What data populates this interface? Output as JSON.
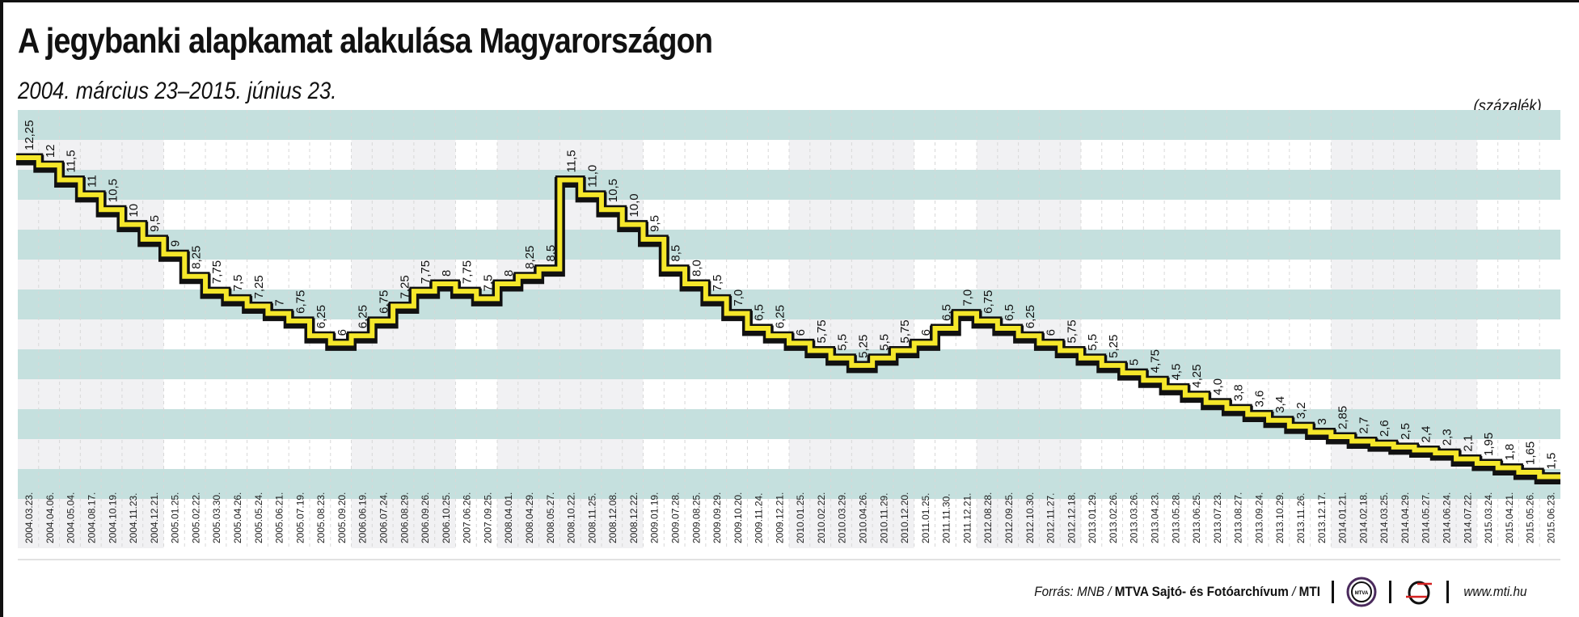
{
  "header": {
    "title": "A jegybanki alapkamat alakulása Magyarországon",
    "subtitle": "2004. március 23–2015. június 23.",
    "unit": "(százalék)"
  },
  "footer": {
    "source_prefix": "Forrás: MNB / ",
    "source_bold": "MTVA Sajtó- és Fotóarchívum",
    "source_sep": " / ",
    "source_mti": "MTI",
    "logo1": "mtva-logo-icon",
    "logo2": "mti-logo-icon",
    "url": "www.mti.hu"
  },
  "colors": {
    "band_teal": "#c5e0de",
    "band_gray": "#f1f1f3",
    "line_fill": "#f5e72a",
    "line_outline": "#111111",
    "grid": "#d8d8d8"
  },
  "chart_data": {
    "type": "line",
    "step": true,
    "title": "A jegybanki alapkamat alakulása Magyarországon",
    "subtitle": "2004. március 23–2015. június 23.",
    "xlabel": "",
    "ylabel": "(százalék)",
    "grid": true,
    "categories": [
      "2004.03.23.",
      "2004.04.06.",
      "2004.05.04.",
      "2004.08.17.",
      "2004.10.19.",
      "2004.11.23.",
      "2004.12.21.",
      "2005.01.25.",
      "2005.02.22.",
      "2005.03.30.",
      "2005.04.26.",
      "2005.05.24.",
      "2005.06.21.",
      "2005.07.19.",
      "2005.08.23.",
      "2005.09.20.",
      "2006.06.19.",
      "2006.07.24.",
      "2006.08.29.",
      "2006.09.26.",
      "2006.10.25.",
      "2007.06.26.",
      "2007.09.25.",
      "2008.04.01.",
      "2008.04.29.",
      "2008.05.27.",
      "2008.10.22.",
      "2008.11.25.",
      "2008.12.08.",
      "2008.12.22.",
      "2009.01.19.",
      "2009.07.28.",
      "2009.08.25.",
      "2009.09.29.",
      "2009.10.20.",
      "2009.11.24.",
      "2009.12.21.",
      "2010.01.25.",
      "2010.02.22.",
      "2010.03.29.",
      "2010.04.26.",
      "2010.11.29.",
      "2010.12.20.",
      "2011.01.25.",
      "2011.11.30.",
      "2011.12.21.",
      "2012.08.28.",
      "2012.09.25.",
      "2012.10.30.",
      "2012.11.27.",
      "2012.12.18.",
      "2013.01.29.",
      "2013.02.26.",
      "2013.03.26.",
      "2013.04.23.",
      "2013.05.28.",
      "2013.06.25.",
      "2013.07.23.",
      "2013.08.27.",
      "2013.09.24.",
      "2013.10.29.",
      "2013.11.26.",
      "2013.12.17.",
      "2014.01.21.",
      "2014.02.18.",
      "2014.03.25.",
      "2014.04.29.",
      "2014.05.27.",
      "2014.06.24.",
      "2014.07.22.",
      "2015.03.24.",
      "2015.04.21.",
      "2015.05.26.",
      "2015.06.23."
    ],
    "values": [
      12.25,
      12,
      11.5,
      11,
      10.5,
      10,
      9.5,
      9,
      8.25,
      7.75,
      7.5,
      7.25,
      7,
      6.75,
      6.25,
      6,
      6.25,
      6.75,
      7.25,
      7.75,
      8,
      7.75,
      7.5,
      8,
      8.25,
      8.5,
      11.5,
      11.0,
      10.5,
      10.0,
      9.5,
      8.5,
      8.0,
      7.5,
      7.0,
      6.5,
      6.25,
      6,
      5.75,
      5.5,
      5.25,
      5.5,
      5.75,
      6,
      6.5,
      7.0,
      6.75,
      6.5,
      6.25,
      6,
      5.75,
      5.5,
      5.25,
      5,
      4.75,
      4.5,
      4.25,
      4.0,
      3.8,
      3.6,
      3.4,
      3.2,
      3,
      2.85,
      2.7,
      2.6,
      2.5,
      2.4,
      2.3,
      2.1,
      1.95,
      1.8,
      1.65,
      1.5
    ],
    "value_labels": [
      "12,25",
      "12",
      "11,5",
      "11",
      "10,5",
      "10",
      "9,5",
      "9",
      "8,25",
      "7,75",
      "7,5",
      "7,25",
      "7",
      "6,75",
      "6,25",
      "6",
      "6,25",
      "6,75",
      "7,25",
      "7,75",
      "8",
      "7,75",
      "7,5",
      "8",
      "8,25",
      "8,5",
      "11,5",
      "11,0",
      "10,5",
      "10,0",
      "9,5",
      "8,5",
      "8,0",
      "7,5",
      "7,0",
      "6,5",
      "6,25",
      "6",
      "5,75",
      "5,5",
      "5,25",
      "5,5",
      "5,75",
      "6",
      "6,5",
      "7,0",
      "6,75",
      "6,5",
      "6,25",
      "6",
      "5,75",
      "5,5",
      "5,25",
      "5",
      "4,75",
      "4,5",
      "4,25",
      "4,0",
      "3,8",
      "3,6",
      "3,4",
      "3,2",
      "3",
      "2,85",
      "2,7",
      "2,6",
      "2,5",
      "2,4",
      "2,3",
      "2,1",
      "1,95",
      "1,8",
      "1,65",
      "1,5"
    ],
    "ylim": [
      0.5,
      13.75
    ],
    "legend": null
  }
}
